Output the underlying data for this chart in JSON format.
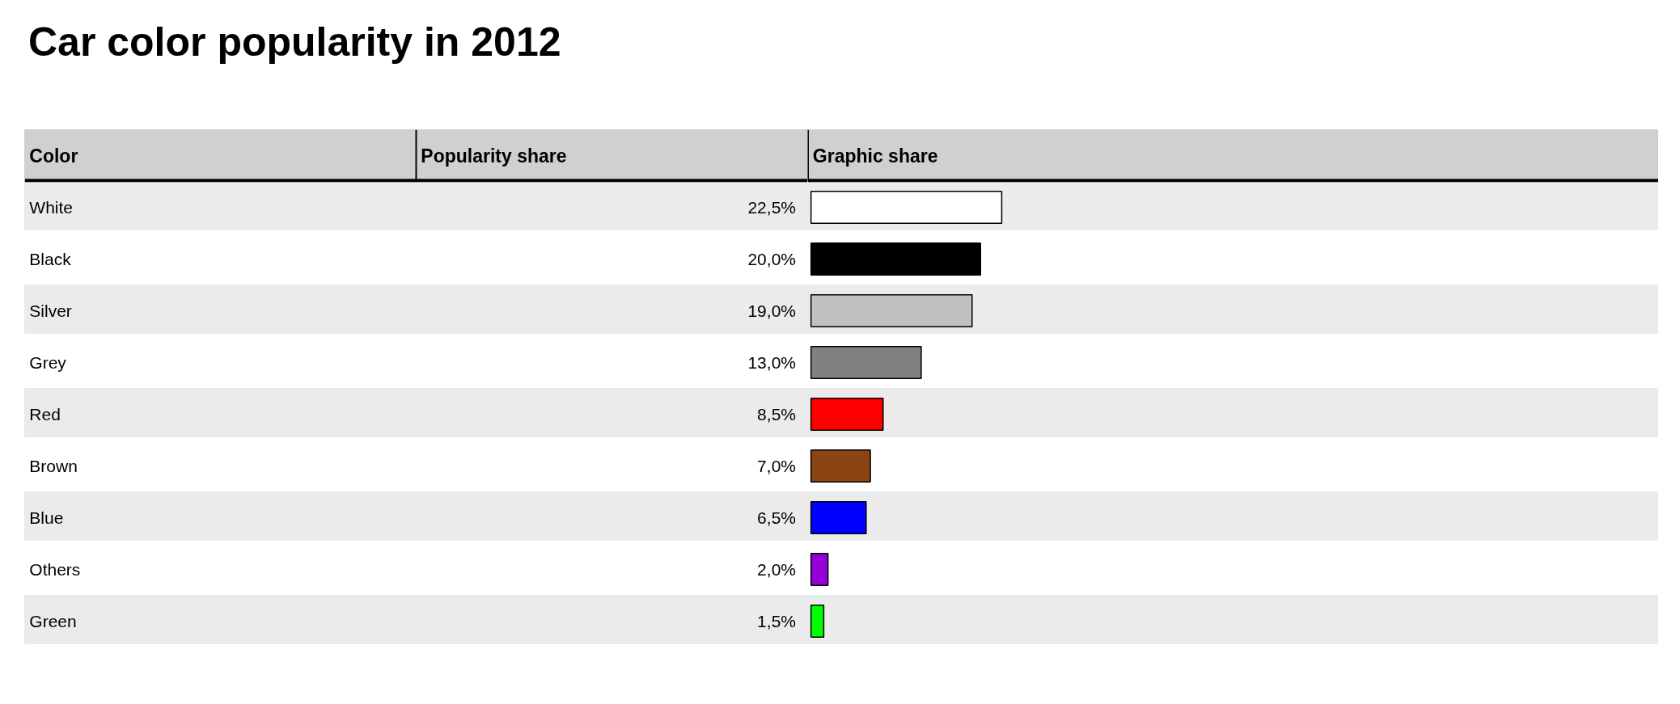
{
  "chart_data": {
    "type": "bar",
    "orientation": "horizontal",
    "title": "Car color popularity in 2012",
    "ylabel": "Color",
    "annotations": [
      "Popularity share",
      "Graphic share"
    ],
    "categories": [
      "White",
      "Black",
      "Silver",
      "Grey",
      "Red",
      "Brown",
      "Blue",
      "Others",
      "Green"
    ],
    "values": [
      22.5,
      20.0,
      19.0,
      13.0,
      8.5,
      7.0,
      6.5,
      2.0,
      1.5
    ],
    "colors": [
      "#ffffff",
      "#000000",
      "#c0c0c0",
      "#808080",
      "#ff0000",
      "#8b4513",
      "#0000ff",
      "#9400d3",
      "#00ff00"
    ],
    "value_labels": [
      "22,5%",
      "20,0%",
      "19,0%",
      "13,0%",
      "8,5%",
      "7,0%",
      "6,5%",
      "2,0%",
      "1,5%"
    ],
    "xlim": [
      0,
      100
    ],
    "tick_labels": "y",
    "grid": false
  }
}
